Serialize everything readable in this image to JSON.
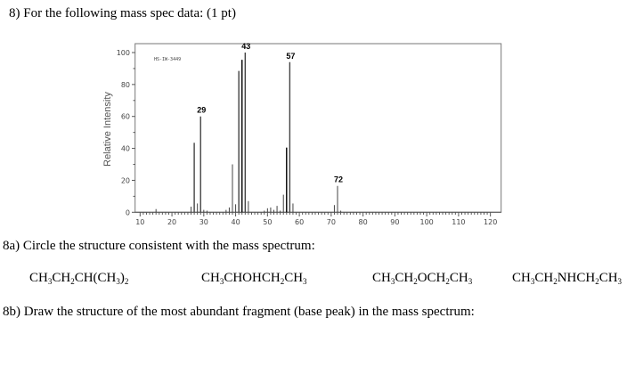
{
  "question_title": "8) For the following mass spec data: (1 pt)",
  "part_a": "8a) Circle the structure consistent with the mass spectrum:",
  "structures": [
    [
      [
        "CH",
        ""
      ],
      [
        "3",
        "s"
      ],
      [
        "CH",
        ""
      ],
      [
        "2",
        "s"
      ],
      [
        "CH(CH",
        ""
      ],
      [
        "3",
        "s"
      ],
      [
        ")",
        ""
      ],
      [
        "2",
        "s"
      ]
    ],
    [
      [
        "CH",
        ""
      ],
      [
        "3",
        "s"
      ],
      [
        "CHOHCH",
        ""
      ],
      [
        "2",
        "s"
      ],
      [
        "CH",
        ""
      ],
      [
        "3",
        "s"
      ]
    ],
    [
      [
        "CH",
        ""
      ],
      [
        "3",
        "s"
      ],
      [
        "CH",
        ""
      ],
      [
        "2",
        "s"
      ],
      [
        "OCH",
        ""
      ],
      [
        "2",
        "s"
      ],
      [
        "CH",
        ""
      ],
      [
        "3",
        "s"
      ]
    ],
    [
      [
        "CH",
        ""
      ],
      [
        "3",
        "s"
      ],
      [
        "CH",
        ""
      ],
      [
        "2",
        "s"
      ],
      [
        "NHCH",
        ""
      ],
      [
        "2",
        "s"
      ],
      [
        "CH",
        ""
      ],
      [
        "3",
        "s"
      ]
    ]
  ],
  "part_b": "8b) Draw the structure of the most abundant fragment (base peak) in the mass spectrum:",
  "chart_data": {
    "type": "bar",
    "code_label": "HS-IW-3449",
    "ylabel": "Relative Intensity",
    "xlabel": "",
    "xlim": [
      10,
      120
    ],
    "ylim": [
      0,
      100
    ],
    "xticks": [
      10,
      20,
      30,
      40,
      50,
      60,
      70,
      80,
      90,
      100,
      110,
      120
    ],
    "yticks": [
      0,
      20,
      40,
      60,
      80,
      100
    ],
    "peaks": [
      {
        "mz": 15,
        "i": 2
      },
      {
        "mz": 26,
        "i": 3.5
      },
      {
        "mz": 27,
        "i": 43.5
      },
      {
        "mz": 28,
        "i": 5.5
      },
      {
        "mz": 29,
        "i": 60,
        "label": "29"
      },
      {
        "mz": 30,
        "i": 1.5
      },
      {
        "mz": 31,
        "i": 1
      },
      {
        "mz": 37,
        "i": 1.5
      },
      {
        "mz": 38,
        "i": 3
      },
      {
        "mz": 39,
        "i": 30
      },
      {
        "mz": 40,
        "i": 5
      },
      {
        "mz": 41,
        "i": 88.5
      },
      {
        "mz": 42,
        "i": 95.5
      },
      {
        "mz": 43,
        "i": 100,
        "label": "43"
      },
      {
        "mz": 44,
        "i": 7
      },
      {
        "mz": 49,
        "i": 1
      },
      {
        "mz": 50,
        "i": 2.5
      },
      {
        "mz": 51,
        "i": 3
      },
      {
        "mz": 52,
        "i": 1.5
      },
      {
        "mz": 53,
        "i": 4
      },
      {
        "mz": 54,
        "i": 1
      },
      {
        "mz": 55,
        "i": 11
      },
      {
        "mz": 56,
        "i": 40.5
      },
      {
        "mz": 57,
        "i": 94,
        "label": "57"
      },
      {
        "mz": 58,
        "i": 5.5
      },
      {
        "mz": 71,
        "i": 4.5
      },
      {
        "mz": 72,
        "i": 16.5,
        "label": "72"
      },
      {
        "mz": 73,
        "i": 1
      }
    ]
  }
}
